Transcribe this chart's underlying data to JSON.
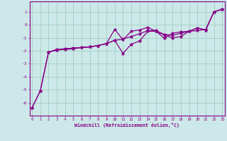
{
  "xlabel": "Windchill (Refroidissement éolien,°C)",
  "background_color": "#cce8e8",
  "line_color": "#880088",
  "grid_color": "#99ccbb",
  "series": [
    {
      "x": [
        0,
        1,
        2,
        3,
        4,
        5,
        6,
        7,
        8,
        9,
        10,
        11,
        12,
        13,
        14,
        15,
        16,
        17,
        18,
        19,
        20,
        21,
        22,
        23
      ],
      "y": [
        -6.4,
        -5.1,
        -2.1,
        -1.9,
        -1.85,
        -1.8,
        -1.75,
        -1.7,
        -1.6,
        -1.45,
        -0.35,
        -1.15,
        -0.5,
        -0.4,
        -0.2,
        -0.5,
        -1.05,
        -0.65,
        -0.55,
        -0.5,
        -0.45,
        -0.35,
        1.0,
        1.2
      ]
    },
    {
      "x": [
        0,
        1,
        2,
        3,
        4,
        5,
        6,
        7,
        8,
        9,
        10,
        11,
        12,
        13,
        14,
        15,
        16,
        17,
        18,
        19,
        20,
        21,
        22,
        23
      ],
      "y": [
        -6.4,
        -5.1,
        -2.1,
        -1.95,
        -1.9,
        -1.85,
        -1.75,
        -1.7,
        -1.6,
        -1.45,
        -1.2,
        -2.2,
        -1.5,
        -1.25,
        -0.5,
        -0.5,
        -0.8,
        -1.0,
        -0.9,
        -0.5,
        -0.25,
        -0.4,
        1.0,
        1.2
      ]
    },
    {
      "x": [
        2,
        3,
        4,
        5,
        6,
        7,
        8,
        9,
        10,
        11,
        12,
        13,
        14,
        15,
        16,
        17,
        18,
        19,
        20,
        21,
        22,
        23
      ],
      "y": [
        -2.1,
        -1.95,
        -1.85,
        -1.8,
        -1.75,
        -1.7,
        -1.6,
        -1.45,
        -1.2,
        -1.1,
        -0.9,
        -0.7,
        -0.45,
        -0.45,
        -0.75,
        -0.8,
        -0.65,
        -0.5,
        -0.25,
        -0.4,
        1.0,
        1.2
      ]
    }
  ],
  "ylim": [
    -7.0,
    1.8
  ],
  "xlim": [
    -0.3,
    23.3
  ],
  "yticks": [
    -6,
    -5,
    -4,
    -3,
    -2,
    -1,
    0,
    1
  ],
  "xticks": [
    0,
    1,
    2,
    3,
    4,
    5,
    6,
    7,
    8,
    9,
    10,
    11,
    12,
    13,
    14,
    15,
    16,
    17,
    18,
    19,
    20,
    21,
    22,
    23
  ]
}
